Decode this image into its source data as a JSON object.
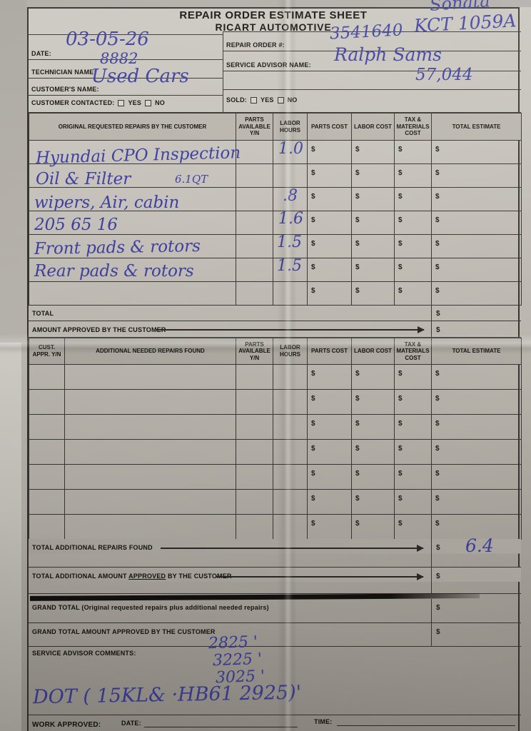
{
  "document": {
    "title_line1": "REPAIR ORDER ESTIMATE SHEET",
    "title_line2": "RICART AUTOMOTIVE"
  },
  "header_fields": {
    "date_label": "DATE:",
    "technician_label": "TECHNICIAN NAME:",
    "customer_label": "CUSTOMER'S NAME:",
    "customer_contacted_label": "CUSTOMER CONTACTED:",
    "repair_order_label": "REPAIR ORDER #:",
    "service_advisor_label": "SERVICE ADVISOR NAME:",
    "sold_label": "SOLD:",
    "yes_label": "YES",
    "no_label": "NO"
  },
  "handwritten": {
    "vehicle_model": "Sonata",
    "vehicle_tag": "KCT 1059A",
    "repair_order_number": "3541640",
    "date": "03-05-26",
    "technician_name": "8882",
    "customer_name": "Used Cars",
    "service_advisor_name": "Ralph Sams",
    "mileage": "57,044",
    "oil_quantity": "6.1QT",
    "total_additional_hours": "6.4",
    "comment_numbers": [
      "2825 '",
      "3225 '",
      "3025 '"
    ],
    "comment_dot_line": "DOT ( 15KL& ·HB61  2925)'"
  },
  "repairs_table": {
    "row_count": 7,
    "columns": [
      "ORIGINAL REQUESTED REPAIRS BY THE CUSTOMER",
      "PARTS AVAILABLE Y/N",
      "LABOR HOURS",
      "PARTS COST",
      "LABOR COST",
      "TAX & MATERIALS COST",
      "TOTAL ESTIMATE"
    ],
    "rows": [
      {
        "description": "Hyundai CPO Inspection",
        "labor_hours": "1.0"
      },
      {
        "description": "Oil & Filter",
        "labor_hours": ""
      },
      {
        "description": "wipers, Air, cabin",
        "labor_hours": ".8"
      },
      {
        "description": "205 65 16",
        "labor_hours": "1.6"
      },
      {
        "description": "Front pads & rotors",
        "labor_hours": "1.5"
      },
      {
        "description": "Rear pads & rotors",
        "labor_hours": "1.5"
      }
    ],
    "total_label": "TOTAL",
    "amount_approved_label": "AMOUNT APPROVED BY THE CUSTOMER"
  },
  "additional_table": {
    "row_count": 7,
    "columns": [
      "CUST. APPR. Y/N",
      "ADDITIONAL NEEDED REPAIRS FOUND",
      "PARTS AVAILABLE Y/N",
      "LABOR HOURS",
      "PARTS COST",
      "LABOR COST",
      "TAX & MATERIALS COST",
      "TOTAL ESTIMATE"
    ],
    "total_found_label": "TOTAL ADDITIONAL REPAIRS FOUND",
    "amount_approved_prefix": "TOTAL ADDITIONAL AMOUNT ",
    "amount_approved_underlined": "APPROVED",
    "amount_approved_suffix": " BY THE CUSTOMER"
  },
  "grand_totals": {
    "grand_total_label": "GRAND TOTAL (Original requested repairs plus additional needed repairs)",
    "grand_total_approved_label": "GRAND TOTAL AMOUNT APPROVED BY THE CUSTOMER"
  },
  "footer": {
    "comments_label": "SERVICE ADVISOR COMMENTS:",
    "work_approved_label": "WORK APPROVED:",
    "date_label": "DATE:",
    "time_label": "TIME:"
  },
  "symbols": {
    "dollar": "$"
  },
  "colors": {
    "ink": "#2e2d2a",
    "pen_blue": "#3f41a0",
    "paper": "#c6c2bb",
    "shade_gray": "#b1ada5"
  }
}
